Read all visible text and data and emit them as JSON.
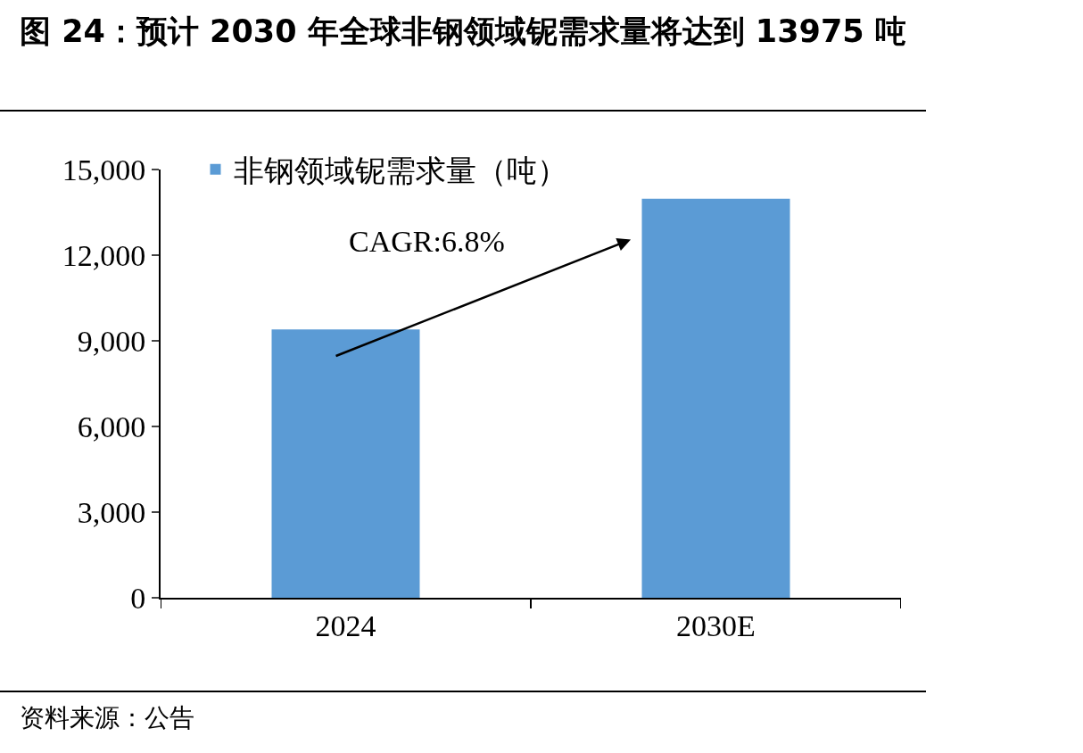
{
  "chart_data": {
    "type": "bar",
    "title": "图 24：预计 2030 年全球非钢领域铌需求量将达到 13975 吨",
    "categories": [
      "2024",
      "2030E"
    ],
    "series": [
      {
        "name": "非钢领域铌需求量（吨）",
        "color": "#5b9bd5",
        "values": [
          9400,
          13975
        ]
      }
    ],
    "ylim": [
      0,
      15000
    ],
    "yticks": [
      0,
      {
        "value": 3000,
        "label": "3,000"
      },
      {
        "value": 6000,
        "label": "6,000"
      },
      {
        "value": 9000,
        "label": "9,000"
      },
      {
        "value": 12000,
        "label": "12,000"
      },
      {
        "value": 15000,
        "label": "15,000"
      }
    ],
    "grid": false,
    "legend": "top left",
    "annotations": [
      "CAGR:6.8%",
      "资料来源：公告"
    ]
  }
}
